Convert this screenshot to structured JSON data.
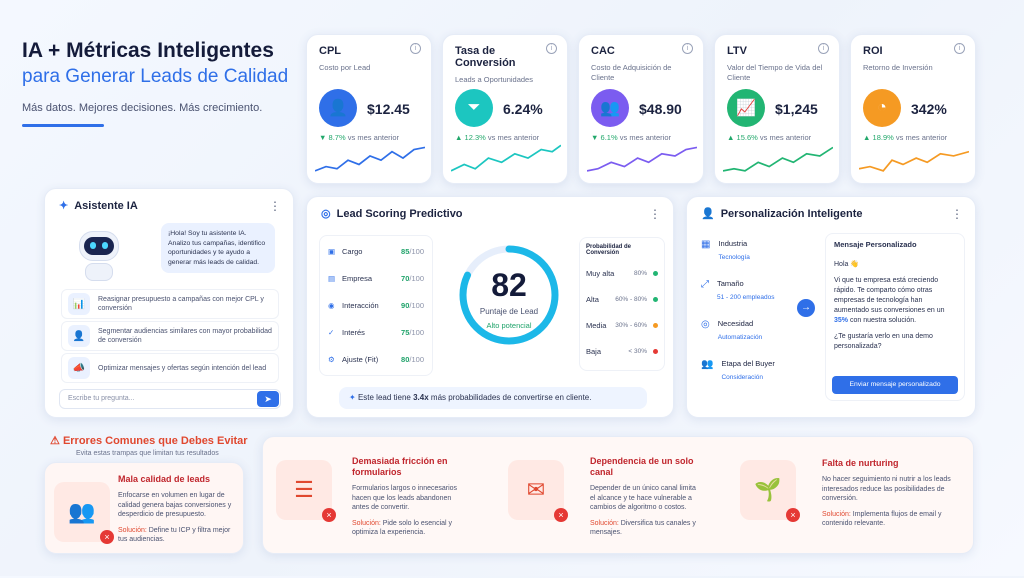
{
  "hero": {
    "title": "IA + Métricas Inteligentes",
    "subtitle": "para Generar Leads de Calidad",
    "tagline": "Más datos. Mejores decisiones. Más crecimiento."
  },
  "kpis": [
    {
      "title": "CPL",
      "sub": "Costo por Lead",
      "value": "$12.45",
      "delta_arrow": "▼",
      "delta": "8.7%",
      "delta_text": "vs mes anterior",
      "icon": "user-icon",
      "color": "#2f6fe8"
    },
    {
      "title": "Tasa de Conversión",
      "sub": "Leads a Oportunidades",
      "value": "6.24%",
      "delta_arrow": "▲",
      "delta": "12.3%",
      "delta_text": "vs mes anterior",
      "icon": "funnel-icon",
      "color": "#1cc6c0"
    },
    {
      "title": "CAC",
      "sub": "Costo de Adquisición de Cliente",
      "value": "$48.90",
      "delta_arrow": "▼",
      "delta": "6.1%",
      "delta_text": "vs mes anterior",
      "icon": "group-icon",
      "color": "#7b5cf0"
    },
    {
      "title": "LTV",
      "sub": "Valor del Tiempo de Vida del Cliente",
      "value": "$1,245",
      "delta_arrow": "▲",
      "delta": "15.6%",
      "delta_text": "vs mes anterior",
      "icon": "growth-icon",
      "color": "#22b573"
    },
    {
      "title": "ROI",
      "sub": "Retorno de Inversión",
      "value": "342%",
      "delta_arrow": "▲",
      "delta": "18.9%",
      "delta_text": "vs mes anterior",
      "icon": "pie-icon",
      "color": "#f59a23"
    }
  ],
  "assistant": {
    "title": "Asistente IA",
    "greeting": "¡Hola! Soy tu asistente IA. Analizo tus campañas, identifico oportunidades y te ayudo a generar más leads de calidad.",
    "suggestions": [
      "Reasignar presupuesto a campañas con mejor CPL y conversión",
      "Segmentar audiencias similares con mayor probabilidad de conversión",
      "Optimizar mensajes y ofertas según intención del lead"
    ],
    "input_placeholder": "Escribe tu pregunta..."
  },
  "scoring": {
    "title": "Lead Scoring Predictivo",
    "criteria": [
      {
        "label": "Cargo",
        "score": "85",
        "max": "/100"
      },
      {
        "label": "Empresa",
        "score": "70",
        "max": "/100"
      },
      {
        "label": "Interacción",
        "score": "90",
        "max": "/100"
      },
      {
        "label": "Interés",
        "score": "75",
        "max": "/100"
      },
      {
        "label": "Ajuste (Fit)",
        "score": "80",
        "max": "/100"
      }
    ],
    "score": "82",
    "score_label": "Puntaje de Lead",
    "score_level": "Alto potencial",
    "score_fraction": 0.82,
    "prob_title": "Probabilidad de Conversión",
    "prob": [
      {
        "label": "Muy alta",
        "range": "80%",
        "color": "#22b573"
      },
      {
        "label": "Alta",
        "range": "60% - 80%",
        "color": "#22b573"
      },
      {
        "label": "Media",
        "range": "30% - 60%",
        "color": "#f59a23"
      },
      {
        "label": "Baja",
        "range": "< 30%",
        "color": "#e53935"
      }
    ],
    "note_pre": "Este lead tiene",
    "note_bold": "3.4x",
    "note_post": "más probabilidades de convertirse en cliente."
  },
  "personal": {
    "title": "Personalización Inteligente",
    "items": [
      {
        "label": "Industria",
        "value": "Tecnología"
      },
      {
        "label": "Tamaño",
        "value": "51 - 200 empleados"
      },
      {
        "label": "Necesidad",
        "value": "Automatización"
      },
      {
        "label": "Etapa del Buyer",
        "value": "Consideración"
      }
    ],
    "msg_title": "Mensaje Personalizado",
    "msg_hello": "Hola 👋",
    "msg_pre": "Vi que tu empresa está creciendo rápido. Te comparto cómo otras empresas de tecnología han aumentado sus conversiones en un",
    "msg_pct": "35%",
    "msg_post": "con nuestra solución.",
    "msg_q": "¿Te gustaría verlo en una demo personalizada?",
    "button": "Enviar mensaje personalizado"
  },
  "errors": {
    "title": "Errores Comunes que Debes Evitar",
    "sub": "Evita estas trampas que limitan tus resultados",
    "sol_label": "Solución:",
    "items": [
      {
        "title": "Mala calidad de leads",
        "desc": "Enfocarse en volumen en lugar de calidad genera bajas conversiones y desperdicio de presupuesto.",
        "sol": "Define tu ICP y filtra mejor tus audiencias."
      },
      {
        "title": "Demasiada fricción en formularios",
        "desc": "Formularios largos o innecesarios hacen que los leads abandonen antes de convertir.",
        "sol": "Pide solo lo esencial y optimiza la experiencia."
      },
      {
        "title": "Dependencia de un solo canal",
        "desc": "Depender de un único canal limita el alcance y te hace vulnerable a cambios de algoritmo o costos.",
        "sol": "Diversifica tus canales y mensajes."
      },
      {
        "title": "Falta de nurturing",
        "desc": "No hacer seguimiento ni nutrir a los leads interesados reduce las posibilidades de conversión.",
        "sol": "Implementa flujos de email y contenido relevante."
      }
    ]
  }
}
